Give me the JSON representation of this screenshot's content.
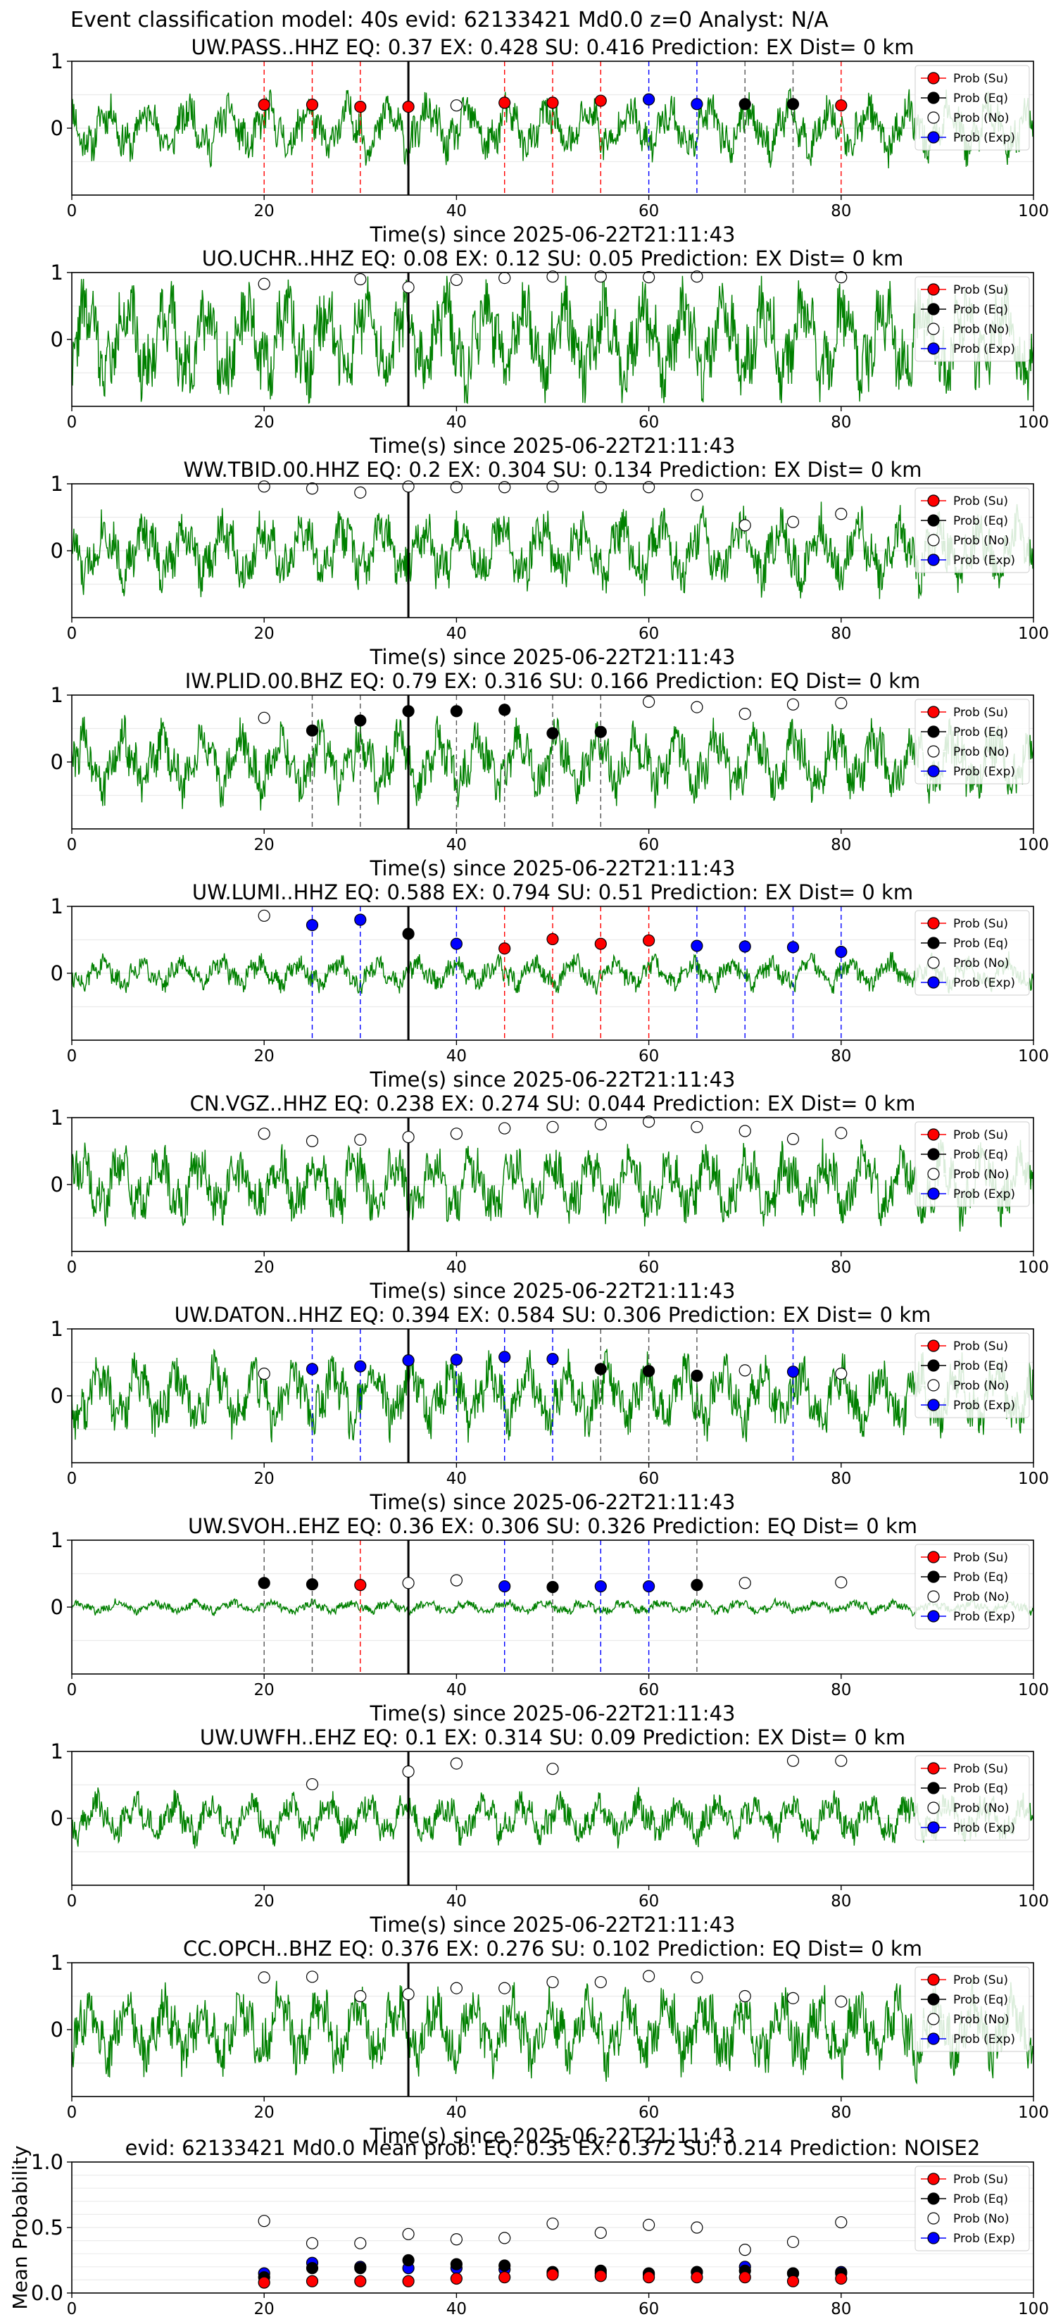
{
  "page_title": "Event classification model: 40s evid: 62133421 Md0.0 z=0 Analyst: N/A",
  "legend_labels": [
    "Prob (Su)",
    "Prob (Eq)",
    "Prob (No)",
    "Prob (Exp)"
  ],
  "colors": {
    "su": "#ff0000",
    "eq": "#000000",
    "no": "#ffffff",
    "exp": "#0000ff",
    "trace": "#008000"
  },
  "chart_data": [
    {
      "type": "line",
      "station": "UW.PASS..HHZ",
      "title": "UW.PASS..HHZ   EQ: 0.37  EX: 0.428  SU: 0.416   Prediction: EX    Dist= 0 km",
      "xlabel": "Time(s) since 2025-06-22T21:11:43",
      "xlim": [
        0,
        100
      ],
      "ylim": [
        -1,
        1
      ],
      "xticks": [
        0,
        20,
        40,
        60,
        80,
        100
      ],
      "yticks": [
        0,
        1
      ],
      "event_line": 35,
      "amp": 0.45,
      "seed": 11,
      "points": [
        {
          "x": 20,
          "y": 0.35,
          "c": "su"
        },
        {
          "x": 25,
          "y": 0.35,
          "c": "su"
        },
        {
          "x": 30,
          "y": 0.32,
          "c": "su"
        },
        {
          "x": 35,
          "y": 0.32,
          "c": "su"
        },
        {
          "x": 40,
          "y": 0.34,
          "c": "no"
        },
        {
          "x": 45,
          "y": 0.38,
          "c": "su"
        },
        {
          "x": 50,
          "y": 0.38,
          "c": "su"
        },
        {
          "x": 55,
          "y": 0.41,
          "c": "su"
        },
        {
          "x": 60,
          "y": 0.43,
          "c": "exp"
        },
        {
          "x": 65,
          "y": 0.36,
          "c": "exp"
        },
        {
          "x": 70,
          "y": 0.36,
          "c": "eq"
        },
        {
          "x": 75,
          "y": 0.36,
          "c": "eq"
        },
        {
          "x": 80,
          "y": 0.34,
          "c": "su"
        }
      ]
    },
    {
      "type": "line",
      "station": "UO.UCHR..HHZ",
      "title": "UO.UCHR..HHZ   EQ: 0.08  EX: 0.12  SU: 0.05   Prediction: EX    Dist= 0 km",
      "xlabel": "Time(s) since 2025-06-22T21:11:43",
      "xlim": [
        0,
        100
      ],
      "ylim": [
        -1,
        1
      ],
      "xticks": [
        0,
        20,
        40,
        60,
        80,
        100
      ],
      "yticks": [
        0,
        1
      ],
      "event_line": 35,
      "amp": 0.8,
      "seed": 22,
      "points": [
        {
          "x": 20,
          "y": 0.83,
          "c": "no"
        },
        {
          "x": 30,
          "y": 0.9,
          "c": "no"
        },
        {
          "x": 35,
          "y": 0.78,
          "c": "no"
        },
        {
          "x": 40,
          "y": 0.89,
          "c": "no"
        },
        {
          "x": 45,
          "y": 0.92,
          "c": "no"
        },
        {
          "x": 50,
          "y": 0.94,
          "c": "no"
        },
        {
          "x": 55,
          "y": 0.94,
          "c": "no"
        },
        {
          "x": 60,
          "y": 0.93,
          "c": "no"
        },
        {
          "x": 65,
          "y": 0.94,
          "c": "no"
        },
        {
          "x": 80,
          "y": 0.93,
          "c": "no"
        }
      ]
    },
    {
      "type": "line",
      "station": "WW.TBID.00.HHZ",
      "title": "WW.TBID.00.HHZ   EQ: 0.2  EX: 0.304  SU: 0.134   Prediction: EX    Dist= 0 km",
      "xlabel": "Time(s) since 2025-06-22T21:11:43",
      "xlim": [
        0,
        100
      ],
      "ylim": [
        -1,
        1
      ],
      "xticks": [
        0,
        20,
        40,
        60,
        80,
        100
      ],
      "yticks": [
        0,
        1
      ],
      "event_line": 35,
      "amp": 0.55,
      "seed": 33,
      "points": [
        {
          "x": 20,
          "y": 0.96,
          "c": "no"
        },
        {
          "x": 25,
          "y": 0.93,
          "c": "no"
        },
        {
          "x": 30,
          "y": 0.87,
          "c": "no"
        },
        {
          "x": 35,
          "y": 0.96,
          "c": "no"
        },
        {
          "x": 40,
          "y": 0.95,
          "c": "no"
        },
        {
          "x": 45,
          "y": 0.95,
          "c": "no"
        },
        {
          "x": 50,
          "y": 0.96,
          "c": "no"
        },
        {
          "x": 55,
          "y": 0.95,
          "c": "no"
        },
        {
          "x": 60,
          "y": 0.95,
          "c": "no"
        },
        {
          "x": 65,
          "y": 0.83,
          "c": "no"
        },
        {
          "x": 70,
          "y": 0.38,
          "c": "no"
        },
        {
          "x": 75,
          "y": 0.43,
          "c": "no"
        },
        {
          "x": 80,
          "y": 0.55,
          "c": "no"
        }
      ]
    },
    {
      "type": "line",
      "station": "IW.PLID.00.BHZ",
      "title": "IW.PLID.00.BHZ   EQ: 0.79  EX: 0.316  SU: 0.166   Prediction: EQ    Dist= 0 km",
      "xlabel": "Time(s) since 2025-06-22T21:11:43",
      "xlim": [
        0,
        100
      ],
      "ylim": [
        -1,
        1
      ],
      "xticks": [
        0,
        20,
        40,
        60,
        80,
        100
      ],
      "yticks": [
        0,
        1
      ],
      "event_line": 35,
      "amp": 0.55,
      "seed": 44,
      "points": [
        {
          "x": 20,
          "y": 0.66,
          "c": "no"
        },
        {
          "x": 25,
          "y": 0.47,
          "c": "eq"
        },
        {
          "x": 30,
          "y": 0.62,
          "c": "eq"
        },
        {
          "x": 35,
          "y": 0.76,
          "c": "eq"
        },
        {
          "x": 40,
          "y": 0.76,
          "c": "eq"
        },
        {
          "x": 45,
          "y": 0.78,
          "c": "eq"
        },
        {
          "x": 50,
          "y": 0.43,
          "c": "eq"
        },
        {
          "x": 55,
          "y": 0.45,
          "c": "eq"
        },
        {
          "x": 60,
          "y": 0.9,
          "c": "no"
        },
        {
          "x": 65,
          "y": 0.82,
          "c": "no"
        },
        {
          "x": 70,
          "y": 0.72,
          "c": "no"
        },
        {
          "x": 75,
          "y": 0.86,
          "c": "no"
        },
        {
          "x": 80,
          "y": 0.88,
          "c": "no"
        }
      ]
    },
    {
      "type": "line",
      "station": "UW.LUMI..HHZ",
      "title": "UW.LUMI..HHZ   EQ: 0.588  EX: 0.794  SU: 0.51   Prediction: EX    Dist= 0 km",
      "xlabel": "Time(s) since 2025-06-22T21:11:43",
      "xlim": [
        0,
        100
      ],
      "ylim": [
        -1,
        1
      ],
      "xticks": [
        0,
        20,
        40,
        60,
        80,
        100
      ],
      "yticks": [
        0,
        1
      ],
      "event_line": 35,
      "amp": 0.25,
      "seed": 55,
      "points": [
        {
          "x": 20,
          "y": 0.86,
          "c": "no"
        },
        {
          "x": 25,
          "y": 0.72,
          "c": "exp"
        },
        {
          "x": 30,
          "y": 0.8,
          "c": "exp"
        },
        {
          "x": 35,
          "y": 0.59,
          "c": "eq"
        },
        {
          "x": 40,
          "y": 0.44,
          "c": "exp"
        },
        {
          "x": 45,
          "y": 0.37,
          "c": "su"
        },
        {
          "x": 50,
          "y": 0.51,
          "c": "su"
        },
        {
          "x": 55,
          "y": 0.44,
          "c": "su"
        },
        {
          "x": 60,
          "y": 0.49,
          "c": "su"
        },
        {
          "x": 65,
          "y": 0.41,
          "c": "exp"
        },
        {
          "x": 70,
          "y": 0.4,
          "c": "exp"
        },
        {
          "x": 75,
          "y": 0.39,
          "c": "exp"
        },
        {
          "x": 80,
          "y": 0.32,
          "c": "exp"
        }
      ]
    },
    {
      "type": "line",
      "station": "CN.VGZ..HHZ",
      "title": "CN.VGZ..HHZ   EQ: 0.238  EX: 0.274  SU: 0.044   Prediction: EX    Dist= 0 km",
      "xlabel": "Time(s) since 2025-06-22T21:11:43",
      "xlim": [
        0,
        100
      ],
      "ylim": [
        -1,
        1
      ],
      "xticks": [
        0,
        20,
        40,
        60,
        80,
        100
      ],
      "yticks": [
        0,
        1
      ],
      "event_line": 35,
      "amp": 0.55,
      "seed": 66,
      "points": [
        {
          "x": 20,
          "y": 0.76,
          "c": "no"
        },
        {
          "x": 25,
          "y": 0.65,
          "c": "no"
        },
        {
          "x": 30,
          "y": 0.67,
          "c": "no"
        },
        {
          "x": 35,
          "y": 0.71,
          "c": "no"
        },
        {
          "x": 40,
          "y": 0.76,
          "c": "no"
        },
        {
          "x": 45,
          "y": 0.84,
          "c": "no"
        },
        {
          "x": 50,
          "y": 0.86,
          "c": "no"
        },
        {
          "x": 55,
          "y": 0.9,
          "c": "no"
        },
        {
          "x": 60,
          "y": 0.94,
          "c": "no"
        },
        {
          "x": 65,
          "y": 0.86,
          "c": "no"
        },
        {
          "x": 70,
          "y": 0.8,
          "c": "no"
        },
        {
          "x": 75,
          "y": 0.68,
          "c": "no"
        },
        {
          "x": 80,
          "y": 0.77,
          "c": "no"
        }
      ]
    },
    {
      "type": "line",
      "station": "UW.DATON..HHZ",
      "title": "UW.DATON..HHZ   EQ: 0.394  EX: 0.584  SU: 0.306   Prediction: EX    Dist= 0 km",
      "xlabel": "Time(s) since 2025-06-22T21:11:43",
      "xlim": [
        0,
        100
      ],
      "ylim": [
        -1,
        1
      ],
      "xticks": [
        0,
        20,
        40,
        60,
        80,
        100
      ],
      "yticks": [
        0,
        1
      ],
      "event_line": 35,
      "amp": 0.55,
      "seed": 77,
      "points": [
        {
          "x": 20,
          "y": 0.33,
          "c": "no"
        },
        {
          "x": 25,
          "y": 0.4,
          "c": "exp"
        },
        {
          "x": 30,
          "y": 0.44,
          "c": "exp"
        },
        {
          "x": 35,
          "y": 0.53,
          "c": "exp"
        },
        {
          "x": 40,
          "y": 0.54,
          "c": "exp"
        },
        {
          "x": 45,
          "y": 0.58,
          "c": "exp"
        },
        {
          "x": 50,
          "y": 0.55,
          "c": "exp"
        },
        {
          "x": 55,
          "y": 0.4,
          "c": "eq"
        },
        {
          "x": 60,
          "y": 0.37,
          "c": "eq"
        },
        {
          "x": 65,
          "y": 0.3,
          "c": "eq"
        },
        {
          "x": 70,
          "y": 0.38,
          "c": "no"
        },
        {
          "x": 75,
          "y": 0.36,
          "c": "exp"
        },
        {
          "x": 80,
          "y": 0.33,
          "c": "no"
        }
      ]
    },
    {
      "type": "line",
      "station": "UW.SVOH..EHZ",
      "title": "UW.SVOH..EHZ   EQ: 0.36  EX: 0.306  SU: 0.326   Prediction: EQ    Dist= 0 km",
      "xlabel": "Time(s) since 2025-06-22T21:11:43",
      "xlim": [
        0,
        100
      ],
      "ylim": [
        -1,
        1
      ],
      "xticks": [
        0,
        20,
        40,
        60,
        80,
        100
      ],
      "yticks": [
        0,
        1
      ],
      "event_line": 35,
      "amp": 0.1,
      "seed": 88,
      "points": [
        {
          "x": 20,
          "y": 0.36,
          "c": "eq"
        },
        {
          "x": 25,
          "y": 0.34,
          "c": "eq"
        },
        {
          "x": 30,
          "y": 0.33,
          "c": "su"
        },
        {
          "x": 35,
          "y": 0.36,
          "c": "no"
        },
        {
          "x": 40,
          "y": 0.4,
          "c": "no"
        },
        {
          "x": 45,
          "y": 0.31,
          "c": "exp"
        },
        {
          "x": 50,
          "y": 0.3,
          "c": "eq"
        },
        {
          "x": 55,
          "y": 0.31,
          "c": "exp"
        },
        {
          "x": 60,
          "y": 0.31,
          "c": "exp"
        },
        {
          "x": 65,
          "y": 0.33,
          "c": "eq"
        },
        {
          "x": 70,
          "y": 0.36,
          "c": "no"
        },
        {
          "x": 80,
          "y": 0.37,
          "c": "no"
        }
      ]
    },
    {
      "type": "line",
      "station": "UW.UWFH..EHZ",
      "title": "UW.UWFH..EHZ   EQ: 0.1  EX: 0.314  SU: 0.09   Prediction: EX    Dist= 0 km",
      "xlabel": "Time(s) since 2025-06-22T21:11:43",
      "xlim": [
        0,
        100
      ],
      "ylim": [
        -1,
        1
      ],
      "xticks": [
        0,
        20,
        40,
        60,
        80,
        100
      ],
      "yticks": [
        0,
        1
      ],
      "event_line": 35,
      "amp": 0.35,
      "seed": 99,
      "points": [
        {
          "x": 25,
          "y": 0.51,
          "c": "no"
        },
        {
          "x": 35,
          "y": 0.7,
          "c": "no"
        },
        {
          "x": 40,
          "y": 0.82,
          "c": "no"
        },
        {
          "x": 50,
          "y": 0.74,
          "c": "no"
        },
        {
          "x": 75,
          "y": 0.86,
          "c": "no"
        },
        {
          "x": 80,
          "y": 0.86,
          "c": "no"
        }
      ]
    },
    {
      "type": "line",
      "station": "CC.OPCH..BHZ",
      "title": "CC.OPCH..BHZ   EQ: 0.376  EX: 0.276  SU: 0.102   Prediction: EQ    Dist= 0 km",
      "xlabel": "Time(s) since 2025-06-22T21:11:43",
      "xlim": [
        0,
        100
      ],
      "ylim": [
        -1,
        1
      ],
      "xticks": [
        0,
        20,
        40,
        60,
        80,
        100
      ],
      "yticks": [
        0,
        1
      ],
      "event_line": 35,
      "amp": 0.6,
      "seed": 111,
      "points": [
        {
          "x": 20,
          "y": 0.78,
          "c": "no"
        },
        {
          "x": 25,
          "y": 0.79,
          "c": "no"
        },
        {
          "x": 30,
          "y": 0.5,
          "c": "no"
        },
        {
          "x": 35,
          "y": 0.53,
          "c": "no"
        },
        {
          "x": 40,
          "y": 0.62,
          "c": "no"
        },
        {
          "x": 45,
          "y": 0.62,
          "c": "no"
        },
        {
          "x": 50,
          "y": 0.71,
          "c": "no"
        },
        {
          "x": 55,
          "y": 0.71,
          "c": "no"
        },
        {
          "x": 60,
          "y": 0.8,
          "c": "no"
        },
        {
          "x": 65,
          "y": 0.78,
          "c": "no"
        },
        {
          "x": 70,
          "y": 0.5,
          "c": "no"
        },
        {
          "x": 75,
          "y": 0.47,
          "c": "no"
        },
        {
          "x": 80,
          "y": 0.42,
          "c": "no"
        }
      ]
    },
    {
      "type": "scatter",
      "station": "mean",
      "title": "evid: 62133421  Md0.0   Mean prob:   EQ: 0.35  EX: 0.372  SU: 0.214   Prediction: NOISE2",
      "ylabel": "Mean Probability",
      "xlim": [
        0,
        100
      ],
      "ylim": [
        0,
        1
      ],
      "xticks": [
        0,
        20,
        40,
        60,
        80,
        100
      ],
      "yticks": [
        0.0,
        0.5,
        1.0
      ],
      "series": [
        {
          "c": "no",
          "x": [
            20,
            25,
            30,
            35,
            40,
            45,
            50,
            55,
            60,
            65,
            70,
            75,
            80
          ],
          "y": [
            0.55,
            0.38,
            0.38,
            0.45,
            0.41,
            0.42,
            0.53,
            0.46,
            0.52,
            0.5,
            0.33,
            0.39,
            0.54
          ]
        },
        {
          "c": "exp",
          "x": [
            20,
            25,
            30,
            35,
            40,
            45,
            50,
            55,
            60,
            65,
            70,
            75,
            80
          ],
          "y": [
            0.15,
            0.23,
            0.2,
            0.19,
            0.19,
            0.18,
            0.15,
            0.15,
            0.14,
            0.16,
            0.2,
            0.15,
            0.16
          ]
        },
        {
          "c": "eq",
          "x": [
            20,
            25,
            30,
            35,
            40,
            45,
            50,
            55,
            60,
            65,
            70,
            75,
            80
          ],
          "y": [
            0.12,
            0.19,
            0.19,
            0.25,
            0.22,
            0.21,
            0.16,
            0.17,
            0.15,
            0.16,
            0.17,
            0.15,
            0.15
          ]
        },
        {
          "c": "su",
          "x": [
            20,
            25,
            30,
            35,
            40,
            45,
            50,
            55,
            60,
            65,
            70,
            75,
            80
          ],
          "y": [
            0.08,
            0.09,
            0.09,
            0.09,
            0.11,
            0.12,
            0.14,
            0.13,
            0.12,
            0.12,
            0.12,
            0.09,
            0.11
          ]
        }
      ]
    }
  ]
}
